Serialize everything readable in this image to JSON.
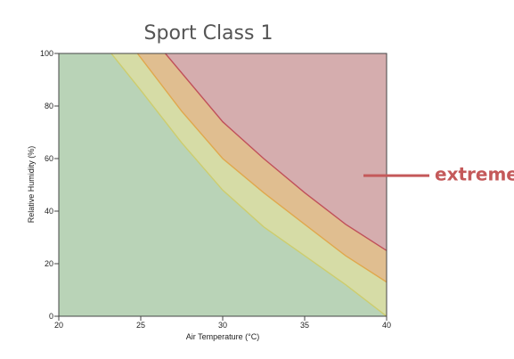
{
  "chart_data": {
    "type": "area",
    "title": "Sport Class 1",
    "xlabel": "Air Temperature (°C)",
    "ylabel": "Relative Humidity (%)",
    "xlim": [
      20,
      40
    ],
    "ylim": [
      0,
      100
    ],
    "x_ticks": [
      "20",
      "25",
      "30",
      "35",
      "40"
    ],
    "y_ticks": [
      "0",
      "20",
      "40",
      "60",
      "80",
      "100"
    ],
    "grid": false,
    "background_color": "#b9d3b7",
    "series": [
      {
        "boundary_color": "#cdcd6e",
        "fill_color": "#d6dca6",
        "points": [
          [
            23.2,
            100
          ],
          [
            25,
            86
          ],
          [
            27.5,
            66
          ],
          [
            30,
            48
          ],
          [
            32.5,
            34
          ],
          [
            35,
            23
          ],
          [
            37.5,
            12
          ],
          [
            40,
            0
          ]
        ]
      },
      {
        "boundary_color": "#e0a84d",
        "fill_color": "#e0be90",
        "points": [
          [
            24.8,
            100
          ],
          [
            27.5,
            78
          ],
          [
            30,
            60
          ],
          [
            32.5,
            47
          ],
          [
            35,
            35
          ],
          [
            37.5,
            23
          ],
          [
            40,
            13
          ]
        ]
      },
      {
        "boundary_color": "#c0505a",
        "fill_color": "#d5adae",
        "points": [
          [
            26.5,
            100
          ],
          [
            30,
            74
          ],
          [
            32.5,
            60
          ],
          [
            35,
            47
          ],
          [
            37.5,
            35
          ],
          [
            40,
            25
          ]
        ]
      }
    ],
    "annotations": [
      {
        "text": "extreme",
        "color": "#c4595a",
        "y": 53.5
      }
    ]
  }
}
